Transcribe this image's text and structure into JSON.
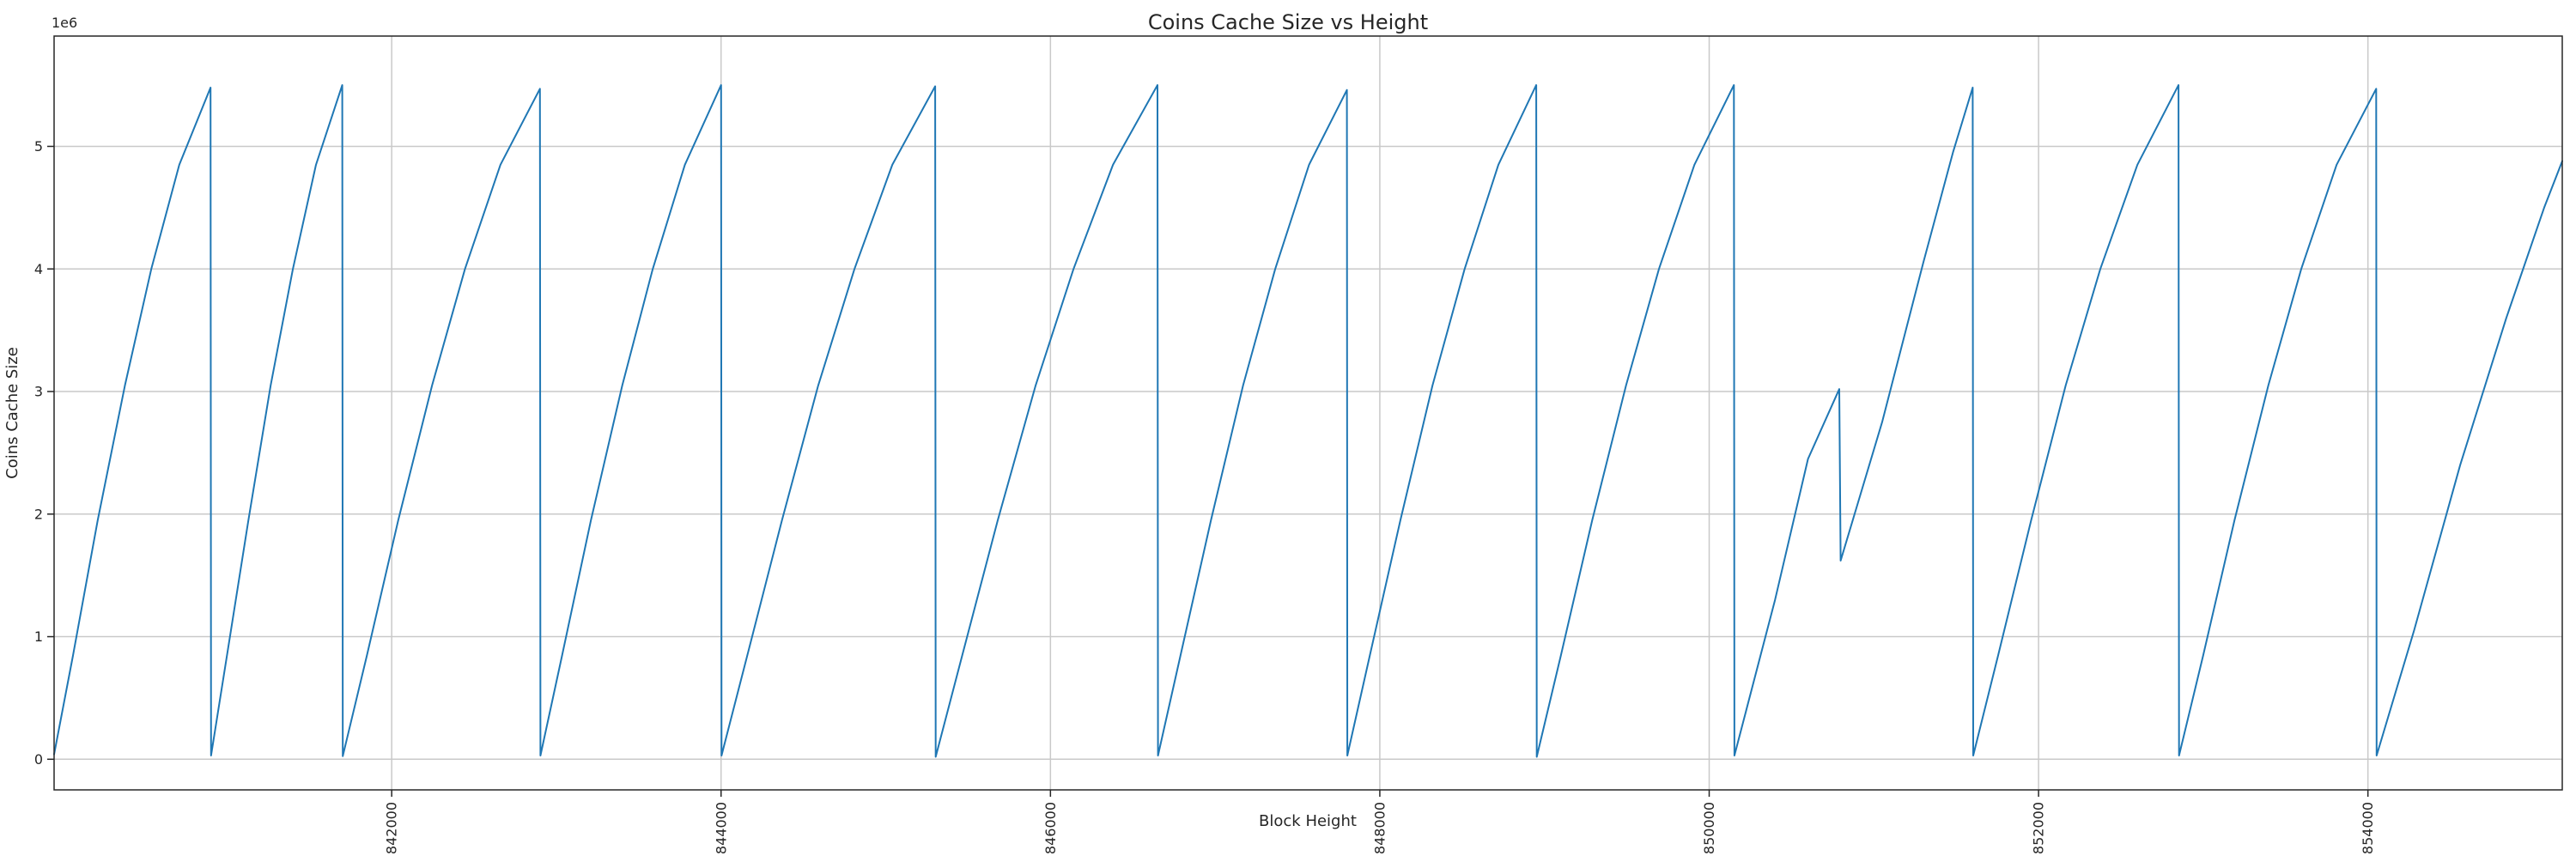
{
  "figure": {
    "title": "Coins Cache Size vs Height",
    "xlabel": "Block Height",
    "ylabel": "Coins Cache Size",
    "offset_text": "1e6"
  },
  "chart_data": {
    "type": "line",
    "title": "Coins Cache Size vs Height",
    "xlabel": "Block Height",
    "ylabel": "Coins Cache Size",
    "xlim": [
      839950,
      855180
    ],
    "ylim": [
      -250000,
      5900000
    ],
    "x_ticks": [
      842000,
      844000,
      846000,
      848000,
      850000,
      852000,
      854000
    ],
    "x_tick_labels": [
      "842000",
      "844000",
      "846000",
      "848000",
      "850000",
      "852000",
      "854000"
    ],
    "y_ticks": [
      0,
      1000000,
      2000000,
      3000000,
      4000000,
      5000000
    ],
    "y_tick_labels": [
      "0",
      "1",
      "2",
      "3",
      "4",
      "5"
    ],
    "y_offset_label": "1e6",
    "grid": true,
    "legend_position": "none",
    "line_color": "#1f77b4",
    "grid_color": "#c9c9c9",
    "spine_color": "#262626",
    "series": [
      {
        "name": "coins cache size",
        "points": [
          [
            839950,
            40000
          ],
          [
            840065,
            850000
          ],
          [
            840215,
            1950000
          ],
          [
            840380,
            3050000
          ],
          [
            840540,
            4000000
          ],
          [
            840710,
            4850000
          ],
          [
            840900,
            5480000
          ],
          [
            840903,
            30000
          ],
          [
            841000,
            850000
          ],
          [
            841130,
            1950000
          ],
          [
            841265,
            3050000
          ],
          [
            841400,
            4000000
          ],
          [
            841540,
            4850000
          ],
          [
            841700,
            5500000
          ],
          [
            841703,
            25000
          ],
          [
            841850,
            850000
          ],
          [
            842040,
            1950000
          ],
          [
            842245,
            3050000
          ],
          [
            842445,
            4000000
          ],
          [
            842660,
            4850000
          ],
          [
            842900,
            5470000
          ],
          [
            842903,
            30000
          ],
          [
            843035,
            850000
          ],
          [
            843210,
            1950000
          ],
          [
            843400,
            3050000
          ],
          [
            843585,
            4000000
          ],
          [
            843780,
            4850000
          ],
          [
            844000,
            5500000
          ],
          [
            844003,
            30000
          ],
          [
            844160,
            850000
          ],
          [
            844370,
            1950000
          ],
          [
            844590,
            3050000
          ],
          [
            844810,
            4000000
          ],
          [
            845040,
            4850000
          ],
          [
            845300,
            5490000
          ],
          [
            845303,
            20000
          ],
          [
            845465,
            850000
          ],
          [
            845680,
            1950000
          ],
          [
            845910,
            3050000
          ],
          [
            846140,
            4000000
          ],
          [
            846380,
            4850000
          ],
          [
            846650,
            5500000
          ],
          [
            846653,
            30000
          ],
          [
            846790,
            850000
          ],
          [
            846975,
            1950000
          ],
          [
            847170,
            3050000
          ],
          [
            847365,
            4000000
          ],
          [
            847570,
            4850000
          ],
          [
            847800,
            5460000
          ],
          [
            847803,
            30000
          ],
          [
            847940,
            850000
          ],
          [
            848125,
            1950000
          ],
          [
            848320,
            3050000
          ],
          [
            848515,
            4000000
          ],
          [
            848720,
            4850000
          ],
          [
            848950,
            5500000
          ],
          [
            848953,
            20000
          ],
          [
            849100,
            850000
          ],
          [
            849290,
            1950000
          ],
          [
            849495,
            3050000
          ],
          [
            849695,
            4000000
          ],
          [
            849910,
            4850000
          ],
          [
            850150,
            5500000
          ],
          [
            850153,
            30000
          ],
          [
            850400,
            1300000
          ],
          [
            850600,
            2450000
          ],
          [
            850790,
            3020000
          ],
          [
            850798,
            1620000
          ],
          [
            851050,
            2750000
          ],
          [
            851300,
            4050000
          ],
          [
            851480,
            4950000
          ],
          [
            851600,
            5480000
          ],
          [
            851603,
            30000
          ],
          [
            851755,
            850000
          ],
          [
            851955,
            1950000
          ],
          [
            852165,
            3050000
          ],
          [
            852375,
            4000000
          ],
          [
            852600,
            4850000
          ],
          [
            852850,
            5500000
          ],
          [
            852853,
            30000
          ],
          [
            853000,
            850000
          ],
          [
            853190,
            1950000
          ],
          [
            853395,
            3050000
          ],
          [
            853595,
            4000000
          ],
          [
            853810,
            4850000
          ],
          [
            854050,
            5470000
          ],
          [
            854053,
            30000
          ],
          [
            854280,
            1050000
          ],
          [
            854560,
            2400000
          ],
          [
            854840,
            3600000
          ],
          [
            855070,
            4500000
          ],
          [
            855180,
            4880000
          ]
        ]
      }
    ]
  }
}
